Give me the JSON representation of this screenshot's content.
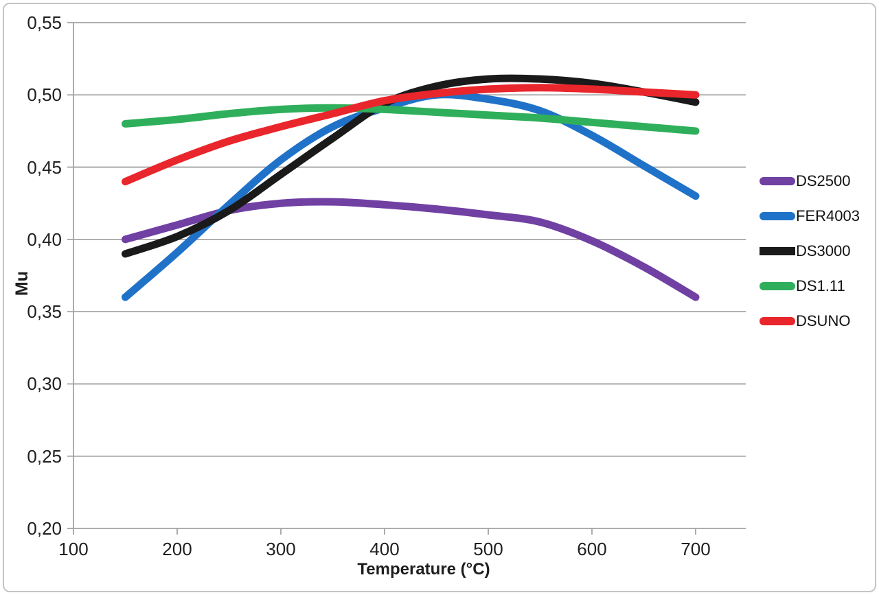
{
  "page": {
    "background": "#ffffff",
    "frame_border_color": "#c4c4c4",
    "grid_color": "#a3a3a3",
    "text_color": "#1e1e1e"
  },
  "chart_data": {
    "type": "line",
    "title": "",
    "xlabel": "Temperature (°C)",
    "ylabel": "Mu",
    "xlim": [
      100,
      750
    ],
    "ylim": [
      0.2,
      0.55
    ],
    "grid": "horizontal",
    "legend_position": "right",
    "decimal_separator": ",",
    "xticks": [
      100,
      200,
      300,
      400,
      500,
      600,
      700
    ],
    "x_tick_labels": [
      "100",
      "200",
      "300",
      "400",
      "500",
      "600",
      "700"
    ],
    "yticks": [
      0.2,
      0.25,
      0.3,
      0.35,
      0.4,
      0.45,
      0.5,
      0.55
    ],
    "y_tick_labels": [
      "0,20",
      "0,25",
      "0,30",
      "0,35",
      "0,40",
      "0,45",
      "0,50",
      "0,55"
    ],
    "x": [
      150,
      200,
      250,
      300,
      350,
      400,
      450,
      500,
      550,
      600,
      650,
      700
    ],
    "series": [
      {
        "name": "DS2500",
        "color": "#7040A3",
        "swatch_shape": "pill",
        "values": [
          0.4,
          0.41,
          0.42,
          0.425,
          0.426,
          0.424,
          0.421,
          0.417,
          0.412,
          0.399,
          0.381,
          0.36
        ]
      },
      {
        "name": "FER4003",
        "color": "#1F72C8",
        "swatch_shape": "pill",
        "values": [
          0.36,
          0.391,
          0.424,
          0.455,
          0.478,
          0.491,
          0.5,
          0.497,
          0.489,
          0.472,
          0.451,
          0.43
        ]
      },
      {
        "name": "DS3000",
        "color": "#1A1A1A",
        "swatch_shape": "rect",
        "values": [
          0.39,
          0.402,
          0.42,
          0.445,
          0.47,
          0.494,
          0.506,
          0.511,
          0.511,
          0.508,
          0.502,
          0.495
        ]
      },
      {
        "name": "DS1.11",
        "color": "#2FAF5B",
        "swatch_shape": "pill",
        "values": [
          0.48,
          0.483,
          0.487,
          0.49,
          0.491,
          0.49,
          0.488,
          0.486,
          0.484,
          0.481,
          0.478,
          0.475
        ]
      },
      {
        "name": "DSUNO",
        "color": "#E9262B",
        "swatch_shape": "pill",
        "values": [
          0.44,
          0.455,
          0.468,
          0.478,
          0.487,
          0.496,
          0.501,
          0.504,
          0.505,
          0.504,
          0.502,
          0.5
        ]
      }
    ]
  }
}
